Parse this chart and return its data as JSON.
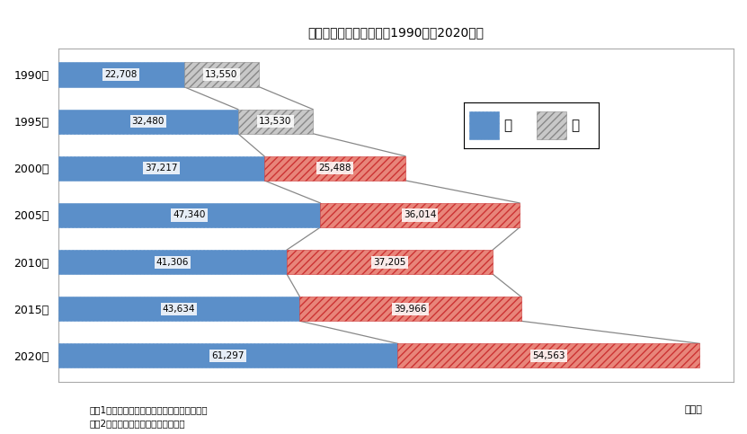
{
  "title": "外国人就業者数の推移（1990年～2020年）",
  "years": [
    "1990年",
    "1995年",
    "2000年",
    "2005年",
    "2010年",
    "2015年",
    "2020年"
  ],
  "male_values": [
    22708,
    32480,
    37217,
    47340,
    41306,
    43634,
    61297
  ],
  "female_values": [
    13550,
    13530,
    25488,
    36014,
    37205,
    39966,
    54563
  ],
  "female_gray_years": [
    "1990年",
    "1995年"
  ],
  "male_color": "#5b8fc9",
  "male_edge_color": "#5b8fc9",
  "female_color_red": "#e8857a",
  "female_color_gray": "#c8c8c8",
  "female_edge_red": "#cc3333",
  "female_edge_gray": "#888888",
  "connector_color": "#888888",
  "note1": "（注1）日本人・外国人の別「不詳」を除く。",
  "note2": "（注2）労働力状態「不詳」を除く。",
  "unit_label": "（人）",
  "legend_male": "男",
  "legend_female": "女",
  "xlim_max": 122000,
  "bar_height": 0.52,
  "figsize": [
    8.31,
    4.83
  ],
  "dpi": 100
}
